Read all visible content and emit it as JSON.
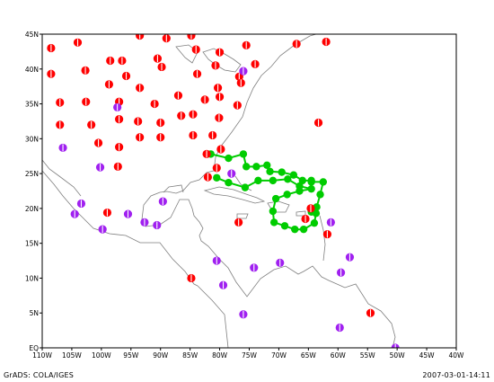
{
  "map": {
    "lon_labels": [
      "110W",
      "105W",
      "100W",
      "95W",
      "90W",
      "85W",
      "80W",
      "75W",
      "70W",
      "65W",
      "60W",
      "55W",
      "50W",
      "45W",
      "40W"
    ],
    "lat_labels": [
      "EQ",
      "5N",
      "10N",
      "15N",
      "20N",
      "25N",
      "30N",
      "35N",
      "40N",
      "45N"
    ],
    "lon_range": [
      -110,
      -40
    ],
    "lat_range": [
      0,
      45
    ],
    "colors": {
      "frame": "#000000",
      "coast": "#7f7f7f",
      "station_red": "#ff0000",
      "station_purple": "#a020f0",
      "track": "#00cc00"
    },
    "icons": {
      "station": "half-filled-circle-marker",
      "track_point": "filled-circle-marker"
    }
  },
  "footer": {
    "left": "GrADS: COLA/IGES",
    "right": "2007-03-01-14:11"
  },
  "chart_data": {
    "type": "map",
    "red_stations": [
      [
        -108.5,
        43.0
      ],
      [
        -104,
        43.8
      ],
      [
        -93.5,
        44.8
      ],
      [
        -89,
        44.4
      ],
      [
        -84.8,
        44.8
      ],
      [
        -75.5,
        43.4
      ],
      [
        -67,
        43.6
      ],
      [
        -62,
        43.9
      ],
      [
        -108.5,
        39.3
      ],
      [
        -102.7,
        39.8
      ],
      [
        -98.5,
        41.2
      ],
      [
        -96.5,
        41.2
      ],
      [
        -90.5,
        41.5
      ],
      [
        -84,
        42.8
      ],
      [
        -80,
        42.4
      ],
      [
        -95.8,
        39.0
      ],
      [
        -89.8,
        40.3
      ],
      [
        -83.8,
        39.3
      ],
      [
        -80.7,
        40.5
      ],
      [
        -74,
        40.7
      ],
      [
        -76.7,
        38.9
      ],
      [
        -76.4,
        38.0
      ],
      [
        -80.3,
        37.3
      ],
      [
        -80,
        36.0
      ],
      [
        -107,
        35.2
      ],
      [
        -102.6,
        35.3
      ],
      [
        -98.7,
        37.8
      ],
      [
        -93.5,
        37.3
      ],
      [
        -87,
        36.2
      ],
      [
        -82.5,
        35.6
      ],
      [
        -97,
        35.3
      ],
      [
        -91,
        35.0
      ],
      [
        -77,
        34.8
      ],
      [
        -107,
        32.0
      ],
      [
        -101.7,
        32.0
      ],
      [
        -97,
        32.8
      ],
      [
        -93.8,
        32.5
      ],
      [
        -90,
        32.3
      ],
      [
        -86.5,
        33.3
      ],
      [
        -84.5,
        33.5
      ],
      [
        -80.1,
        33.0
      ],
      [
        -63.3,
        32.3
      ],
      [
        -100.5,
        29.4
      ],
      [
        -97,
        28.8
      ],
      [
        -93.5,
        30.2
      ],
      [
        -90,
        30.2
      ],
      [
        -84.5,
        30.5
      ],
      [
        -81.2,
        30.5
      ],
      [
        -79.8,
        28.5
      ],
      [
        -97.2,
        26.0
      ],
      [
        -82.2,
        27.8
      ],
      [
        -82,
        24.5
      ],
      [
        -80.5,
        25.8
      ],
      [
        -64.6,
        20.0
      ],
      [
        -65.5,
        18.5
      ],
      [
        -61.8,
        16.3
      ],
      [
        -76.8,
        18.0
      ],
      [
        -99,
        19.4
      ],
      [
        -84.8,
        10.0
      ],
      [
        -54.5,
        5.0
      ]
    ],
    "purple_stations": [
      [
        -97.3,
        34.5
      ],
      [
        -76,
        39.7
      ],
      [
        -106.5,
        28.7
      ],
      [
        -100.2,
        25.9
      ],
      [
        -78,
        25.0
      ],
      [
        -103.4,
        20.7
      ],
      [
        -104.5,
        19.2
      ],
      [
        -95.5,
        19.2
      ],
      [
        -92.7,
        18.0
      ],
      [
        -89.6,
        21.0
      ],
      [
        -90.6,
        17.6
      ],
      [
        -99.8,
        17.0
      ],
      [
        -80.5,
        12.5
      ],
      [
        -74.2,
        11.5
      ],
      [
        -69.8,
        12.2
      ],
      [
        -79.4,
        9.0
      ],
      [
        -76,
        4.8
      ],
      [
        -59.5,
        10.8
      ],
      [
        -58,
        13.0
      ],
      [
        -61.2,
        18.0
      ],
      [
        -59.7,
        2.9
      ],
      [
        -50.3,
        0.0
      ]
    ],
    "track": [
      [
        -81.5,
        27.8
      ],
      [
        -78.5,
        27.2
      ],
      [
        -76,
        27.8
      ],
      [
        -75.5,
        26.0
      ],
      [
        -73.8,
        26.0
      ],
      [
        -72,
        26.2
      ],
      [
        -71.5,
        25.3
      ],
      [
        -69.5,
        25.2
      ],
      [
        -67.5,
        24.8
      ],
      [
        -66,
        24.0
      ],
      [
        -64.5,
        24.0
      ],
      [
        -64.5,
        23.8
      ],
      [
        -62.5,
        23.8
      ],
      [
        -63,
        22.0
      ],
      [
        -63.6,
        20.2
      ],
      [
        -64.5,
        19.5
      ],
      [
        -63.7,
        19.3
      ],
      [
        -64,
        17.9
      ],
      [
        -65.8,
        17.0
      ],
      [
        -67.3,
        17.0
      ],
      [
        -69,
        17.5
      ],
      [
        -70.8,
        18.0
      ],
      [
        -71,
        19.6
      ],
      [
        -70.5,
        21.4
      ],
      [
        -68.6,
        22.0
      ],
      [
        -66.5,
        22.5
      ],
      [
        -64.5,
        22.8
      ],
      [
        -66.5,
        23.2
      ],
      [
        -68.5,
        24.2
      ],
      [
        -71,
        24.0
      ],
      [
        -73.5,
        24.0
      ],
      [
        -75.7,
        23.0
      ],
      [
        -78.5,
        23.7
      ],
      [
        -80.5,
        24.4
      ]
    ],
    "xlabel": "",
    "ylabel": ""
  }
}
